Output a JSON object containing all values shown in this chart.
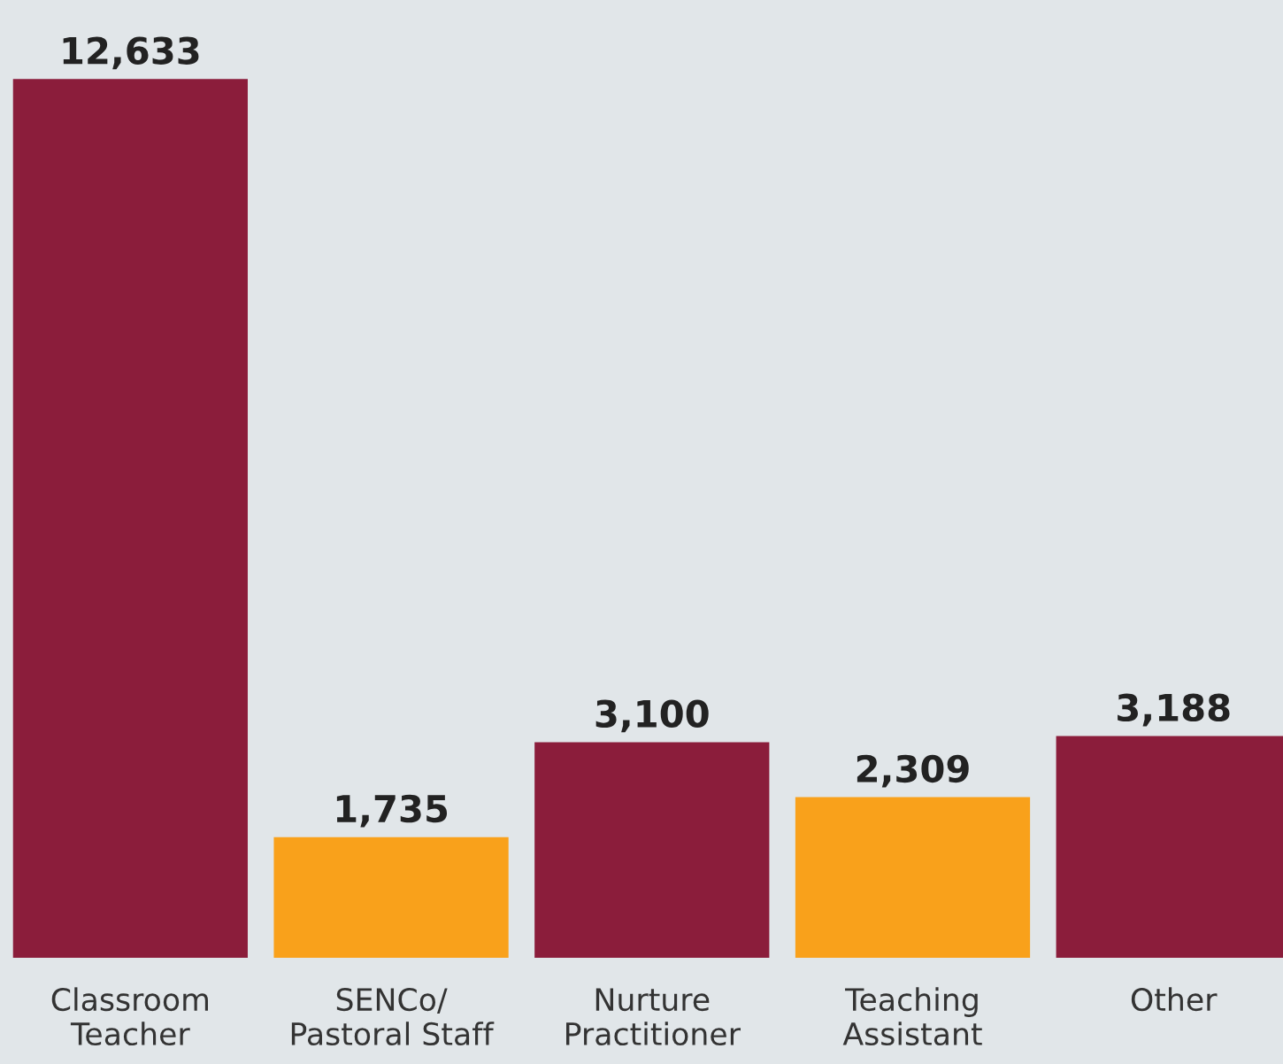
{
  "chart_data": {
    "type": "bar",
    "categories": [
      "Classroom\nTeacher",
      "SENCo/\nPastoral Staff",
      "Nurture\nPractitioner",
      "Teaching\nAssistant",
      "Other"
    ],
    "values": [
      12633,
      1735,
      3100,
      2309,
      3188
    ],
    "colors": [
      "#8b1d3b",
      "#f9a11b",
      "#8b1d3b",
      "#f9a11b",
      "#8b1d3b"
    ],
    "value_labels": [
      "12,633",
      "1,735",
      "3,100",
      "2,309",
      "3,188"
    ],
    "grid": false,
    "legend": false
  }
}
